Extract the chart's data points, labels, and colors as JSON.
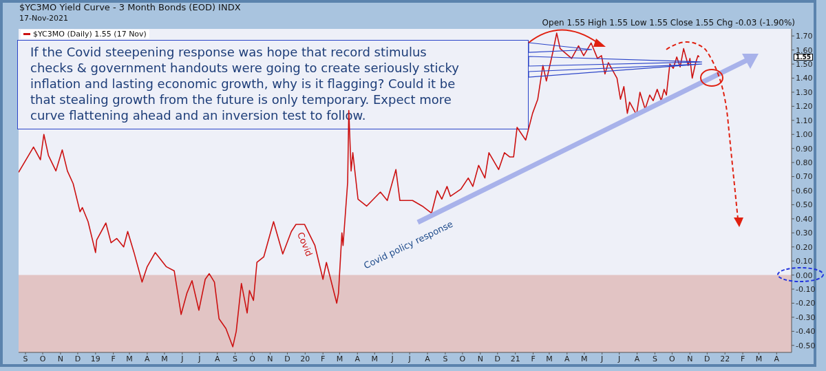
{
  "chart_data": {
    "type": "line",
    "title": "$YC3MO Yield Curve - 3 Month Bonds (EOD) INDX",
    "subtitle": "17-Nov-2021",
    "annotations": [
      "Open 1.55  High 1.55  Low 1.55  Close 1.55  Chg -0.03 (-1.90%)",
      "1.55",
      "If the Covid steepening response was hope that record stimulus checks & government handouts were going to create seriously sticky inflation and lasting economic growth, why is it flagging? Could it be that stealing growth from the future is only temporary. Expect more curve flattening ahead and an inversion test to follow.",
      "Covid",
      "Covid policy response"
    ],
    "series": [
      {
        "name": "$YC3MO (Daily) 1.55 (17 Nov)",
        "color": "#cc1111",
        "x": [
          "2018-08-20",
          "2018-09-15",
          "2018-09-27",
          "2018-10-03",
          "2018-10-11",
          "2018-10-24",
          "2018-11-04",
          "2018-11-13",
          "2018-11-23",
          "2018-12-05",
          "2018-12-09",
          "2018-12-19",
          "2019-01-01",
          "2019-01-03",
          "2019-01-19",
          "2019-01-28",
          "2019-02-07",
          "2019-02-19",
          "2019-02-26",
          "2019-03-09",
          "2019-03-23",
          "2019-04-01",
          "2019-04-15",
          "2019-05-04",
          "2019-05-18",
          "2019-05-30",
          "2019-06-09",
          "2019-06-18",
          "2019-06-30",
          "2019-07-11",
          "2019-07-18",
          "2019-07-27",
          "2019-08-04",
          "2019-08-16",
          "2019-08-28",
          "2019-09-03",
          "2019-09-12",
          "2019-09-22",
          "2019-09-26",
          "2019-10-03",
          "2019-10-09",
          "2019-10-21",
          "2019-11-07",
          "2019-11-23",
          "2019-12-08",
          "2019-12-16",
          "2019-12-31",
          "2020-01-18",
          "2020-02-01",
          "2020-02-07",
          "2020-02-25",
          "2020-02-28",
          "2020-03-05",
          "2020-03-07",
          "2020-03-15",
          "2020-03-17",
          "2020-03-21",
          "2020-03-24",
          "2020-04-02",
          "2020-04-17",
          "2020-05-11",
          "2020-05-23",
          "2020-06-07",
          "2020-06-14",
          "2020-07-06",
          "2020-07-23",
          "2020-08-08",
          "2020-08-18",
          "2020-08-26",
          "2020-09-04",
          "2020-09-10",
          "2020-09-28",
          "2020-10-11",
          "2020-10-19",
          "2020-10-29",
          "2020-11-09",
          "2020-11-16",
          "2020-12-03",
          "2020-12-13",
          "2020-12-22",
          "2020-12-29",
          "2021-01-04",
          "2021-01-19",
          "2021-01-31",
          "2021-02-09",
          "2021-02-18",
          "2021-02-24",
          "2021-03-07",
          "2021-03-14",
          "2021-03-20",
          "2021-04-09",
          "2021-04-21",
          "2021-04-30",
          "2021-05-13",
          "2021-05-24",
          "2021-05-31",
          "2021-06-06",
          "2021-06-12",
          "2021-06-27",
          "2021-07-03",
          "2021-07-09",
          "2021-07-15",
          "2021-07-19",
          "2021-07-31",
          "2021-08-06",
          "2021-08-15",
          "2021-08-23",
          "2021-08-29",
          "2021-09-05",
          "2021-09-12",
          "2021-09-17",
          "2021-09-21",
          "2021-09-27",
          "2021-10-03",
          "2021-10-09",
          "2021-10-15",
          "2021-10-21",
          "2021-10-29",
          "2021-11-01",
          "2021-11-05",
          "2021-11-11",
          "2021-11-15",
          "2021-11-17"
        ],
        "values": [
          0.73,
          0.91,
          0.82,
          1.0,
          0.85,
          0.74,
          0.89,
          0.74,
          0.65,
          0.45,
          0.48,
          0.38,
          0.16,
          0.25,
          0.37,
          0.23,
          0.26,
          0.2,
          0.31,
          0.16,
          -0.05,
          0.06,
          0.16,
          0.06,
          0.03,
          -0.28,
          -0.13,
          -0.04,
          -0.25,
          -0.03,
          0.01,
          -0.05,
          -0.31,
          -0.38,
          -0.51,
          -0.4,
          -0.06,
          -0.27,
          -0.11,
          -0.18,
          0.09,
          0.13,
          0.38,
          0.15,
          0.31,
          0.36,
          0.36,
          0.21,
          -0.03,
          0.09,
          -0.2,
          -0.13,
          0.3,
          0.21,
          0.66,
          1.17,
          0.74,
          0.87,
          0.54,
          0.49,
          0.59,
          0.53,
          0.75,
          0.53,
          0.53,
          0.49,
          0.44,
          0.6,
          0.54,
          0.63,
          0.56,
          0.61,
          0.69,
          0.63,
          0.78,
          0.69,
          0.87,
          0.75,
          0.87,
          0.84,
          0.84,
          1.05,
          0.96,
          1.15,
          1.25,
          1.49,
          1.38,
          1.58,
          1.72,
          1.61,
          1.54,
          1.63,
          1.56,
          1.65,
          1.54,
          1.56,
          1.43,
          1.51,
          1.4,
          1.25,
          1.34,
          1.15,
          1.23,
          1.14,
          1.3,
          1.18,
          1.28,
          1.24,
          1.32,
          1.24,
          1.32,
          1.28,
          1.5,
          1.47,
          1.55,
          1.48,
          1.61,
          1.49,
          1.54,
          1.4,
          1.51,
          1.56,
          1.55
        ]
      }
    ],
    "xlim": [
      "2018-08-20",
      "2022-04-27"
    ],
    "xticks": [
      {
        "value": "2018-09-01",
        "label": "S"
      },
      {
        "value": "2018-10-01",
        "label": "O"
      },
      {
        "value": "2018-11-01",
        "label": "N"
      },
      {
        "value": "2018-12-01",
        "label": "D"
      },
      {
        "value": "2019-01-01",
        "label": "19"
      },
      {
        "value": "2019-02-01",
        "label": "F"
      },
      {
        "value": "2019-03-01",
        "label": "M"
      },
      {
        "value": "2019-04-01",
        "label": "A"
      },
      {
        "value": "2019-05-01",
        "label": "M"
      },
      {
        "value": "2019-06-01",
        "label": "J"
      },
      {
        "value": "2019-07-01",
        "label": "J"
      },
      {
        "value": "2019-08-01",
        "label": "A"
      },
      {
        "value": "2019-09-01",
        "label": "S"
      },
      {
        "value": "2019-10-01",
        "label": "O"
      },
      {
        "value": "2019-11-01",
        "label": "N"
      },
      {
        "value": "2019-12-01",
        "label": "D"
      },
      {
        "value": "2020-01-01",
        "label": "20"
      },
      {
        "value": "2020-02-01",
        "label": "F"
      },
      {
        "value": "2020-03-01",
        "label": "M"
      },
      {
        "value": "2020-04-01",
        "label": "A"
      },
      {
        "value": "2020-05-01",
        "label": "M"
      },
      {
        "value": "2020-06-01",
        "label": "J"
      },
      {
        "value": "2020-07-01",
        "label": "J"
      },
      {
        "value": "2020-08-01",
        "label": "A"
      },
      {
        "value": "2020-09-01",
        "label": "S"
      },
      {
        "value": "2020-10-01",
        "label": "O"
      },
      {
        "value": "2020-11-01",
        "label": "N"
      },
      {
        "value": "2020-12-01",
        "label": "D"
      },
      {
        "value": "2021-01-01",
        "label": "21"
      },
      {
        "value": "2021-02-01",
        "label": "F"
      },
      {
        "value": "2021-03-01",
        "label": "M"
      },
      {
        "value": "2021-04-01",
        "label": "A"
      },
      {
        "value": "2021-05-01",
        "label": "M"
      },
      {
        "value": "2021-06-01",
        "label": "J"
      },
      {
        "value": "2021-07-01",
        "label": "J"
      },
      {
        "value": "2021-08-01",
        "label": "A"
      },
      {
        "value": "2021-09-01",
        "label": "S"
      },
      {
        "value": "2021-10-01",
        "label": "O"
      },
      {
        "value": "2021-11-01",
        "label": "N"
      },
      {
        "value": "2021-12-01",
        "label": "D"
      },
      {
        "value": "2022-01-01",
        "label": "22"
      },
      {
        "value": "2022-02-01",
        "label": "F"
      },
      {
        "value": "2022-03-01",
        "label": "M"
      },
      {
        "value": "2022-04-01",
        "label": "A"
      }
    ],
    "ylim": [
      -0.55,
      1.75
    ],
    "yticks": [
      {
        "value": -0.5,
        "label": "-0.50"
      },
      {
        "value": -0.4,
        "label": "-0.40"
      },
      {
        "value": -0.3,
        "label": "-0.30"
      },
      {
        "value": -0.2,
        "label": "-0.20"
      },
      {
        "value": -0.1,
        "label": "-0.10"
      },
      {
        "value": 0,
        "label": "0.00"
      },
      {
        "value": 0.1,
        "label": "0.10"
      },
      {
        "value": 0.2,
        "label": "0.20"
      },
      {
        "value": 0.3,
        "label": "0.30"
      },
      {
        "value": 0.4,
        "label": "0.40"
      },
      {
        "value": 0.5,
        "label": "0.50"
      },
      {
        "value": 0.6,
        "label": "0.60"
      },
      {
        "value": 0.7,
        "label": "0.70"
      },
      {
        "value": 0.8,
        "label": "0.80"
      },
      {
        "value": 0.9,
        "label": "0.90"
      },
      {
        "value": 1.0,
        "label": "1.00"
      },
      {
        "value": 1.1,
        "label": "1.10"
      },
      {
        "value": 1.2,
        "label": "1.20"
      },
      {
        "value": 1.3,
        "label": "1.30"
      },
      {
        "value": 1.4,
        "label": "1.40"
      },
      {
        "value": 1.5,
        "label": "1.50"
      },
      {
        "value": 1.6,
        "label": "1.60"
      },
      {
        "value": 1.7,
        "label": "1.70"
      }
    ],
    "bands": [
      {
        "axis": "y",
        "from": -0.55,
        "to": 0,
        "color": "#e2c4c4"
      }
    ],
    "grid": false,
    "legend": "top left",
    "marker": "none",
    "line_style": "solid"
  }
}
